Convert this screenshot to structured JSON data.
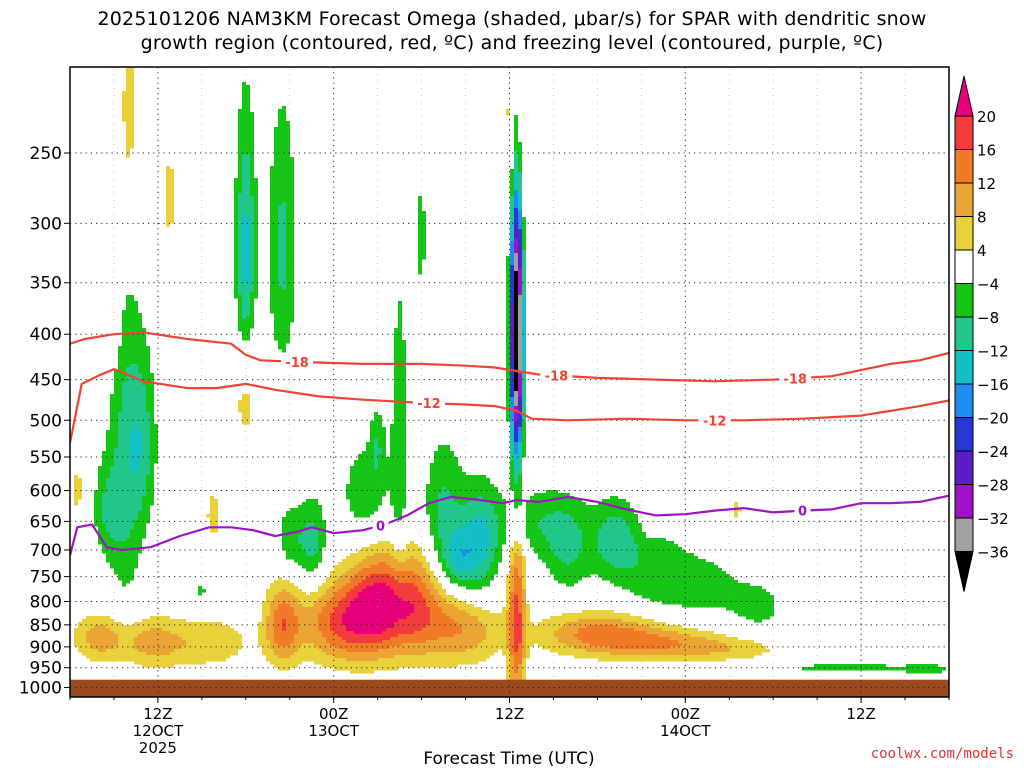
{
  "title_line1": "2025101206 NAM3KM Forecast Omega (shaded, μbar/s) for SPAR with dendritic snow",
  "title_line2": "growth region (contoured, red, ºC) and freezing level (contoured, purple, ºC)",
  "watermark": "coolwx.com/models",
  "chart_data": {
    "type": "heatmap",
    "title": "2025101206 NAM3KM Forecast Omega (shaded, μbar/s) for SPAR with dendritic snow growth region (contoured, red, ºC) and freezing level (contoured, purple, ºC)",
    "xlabel": "Forecast Time (UTC)",
    "ylabel": "",
    "x_ticks": [
      {
        "label": "12Z",
        "sub": "12OCT",
        "sub2": "2025",
        "hour": 6
      },
      {
        "label": "00Z",
        "sub": "13OCT",
        "sub2": "",
        "hour": 18
      },
      {
        "label": "12Z",
        "sub": "",
        "sub2": "",
        "hour": 30
      },
      {
        "label": "00Z",
        "sub": "14OCT",
        "sub2": "",
        "hour": 42
      },
      {
        "label": "12Z",
        "sub": "",
        "sub2": "",
        "hour": 54
      }
    ],
    "x_range_hours": [
      0,
      60
    ],
    "y_scale": "log",
    "y_ticks": [
      250,
      300,
      350,
      400,
      450,
      500,
      550,
      600,
      650,
      700,
      750,
      800,
      850,
      900,
      950,
      1000
    ],
    "y_range": [
      200,
      1025
    ],
    "grid": true,
    "colorbar": {
      "ticks": [
        20,
        16,
        12,
        8,
        4,
        -4,
        -8,
        -12,
        -16,
        -20,
        -24,
        -28,
        -32,
        -36
      ],
      "bins": [
        {
          "min": 20,
          "max": 999,
          "color": "#e8007a"
        },
        {
          "min": 16,
          "max": 20,
          "color": "#f23b3b"
        },
        {
          "min": 12,
          "max": 16,
          "color": "#f07a25"
        },
        {
          "min": 8,
          "max": 12,
          "color": "#eba535"
        },
        {
          "min": 4,
          "max": 8,
          "color": "#e8d13a"
        },
        {
          "min": -4,
          "max": 4,
          "color": "#ffffff"
        },
        {
          "min": -8,
          "max": -4,
          "color": "#16c416"
        },
        {
          "min": -12,
          "max": -8,
          "color": "#22c88a"
        },
        {
          "min": -16,
          "max": -12,
          "color": "#14bfc6"
        },
        {
          "min": -20,
          "max": -16,
          "color": "#1e8cf0"
        },
        {
          "min": -24,
          "max": -20,
          "color": "#2838d8"
        },
        {
          "min": -28,
          "max": -24,
          "color": "#5a1ec8"
        },
        {
          "min": -32,
          "max": -28,
          "color": "#a012c8"
        },
        {
          "min": -36,
          "max": -32,
          "color": "#a0a0a0"
        },
        {
          "min": -999,
          "max": -36,
          "color": "#000000"
        }
      ]
    },
    "omega_features": [
      {
        "t": 2.0,
        "p": 880,
        "w": 1.8,
        "h": 55,
        "v": 10
      },
      {
        "t": 5.5,
        "p": 890,
        "w": 2.2,
        "h": 60,
        "v": 9
      },
      {
        "t": 9.5,
        "p": 890,
        "w": 3.0,
        "h": 60,
        "v": 7
      },
      {
        "t": 14.5,
        "p": 850,
        "w": 1.2,
        "h": 90,
        "v": 14
      },
      {
        "t": 18.5,
        "p": 845,
        "w": 2.8,
        "h": 90,
        "v": 16
      },
      {
        "t": 20.8,
        "p": 800,
        "w": 2.0,
        "h": 110,
        "v": 15
      },
      {
        "t": 23.5,
        "p": 810,
        "w": 2.2,
        "h": 110,
        "v": 16
      },
      {
        "t": 27.0,
        "p": 860,
        "w": 2.5,
        "h": 80,
        "v": 11
      },
      {
        "t": 30.5,
        "p": 820,
        "w": 0.6,
        "h": 260,
        "v": 16
      },
      {
        "t": 30.5,
        "p": 240,
        "w": 0.8,
        "h": 80,
        "v": 12
      },
      {
        "t": 36.0,
        "p": 870,
        "w": 4.0,
        "h": 50,
        "v": 13
      },
      {
        "t": 40.5,
        "p": 890,
        "w": 4.0,
        "h": 40,
        "v": 9
      },
      {
        "t": 45.0,
        "p": 905,
        "w": 4.0,
        "h": 30,
        "v": 6
      },
      {
        "t": 4.0,
        "p": 230,
        "w": 0.8,
        "h": 80,
        "v": 6
      },
      {
        "t": 6.8,
        "p": 280,
        "w": 0.6,
        "h": 50,
        "v": 5
      },
      {
        "t": 12.0,
        "p": 460,
        "w": 1.0,
        "h": 80,
        "v": 7
      },
      {
        "t": 9.8,
        "p": 640,
        "w": 0.6,
        "h": 50,
        "v": 6
      },
      {
        "t": 3.0,
        "p": 370,
        "w": 0.5,
        "h": 60,
        "v": 5
      },
      {
        "t": 0.5,
        "p": 600,
        "w": 0.6,
        "h": 60,
        "v": 5
      },
      {
        "t": 39.5,
        "p": 630,
        "w": 0.4,
        "h": 40,
        "v": 5
      },
      {
        "t": 45.5,
        "p": 630,
        "w": 0.5,
        "h": 30,
        "v": 5
      },
      {
        "t": 12.0,
        "p": 330,
        "w": 0.7,
        "h": 110,
        "v": -14
      },
      {
        "t": 14.5,
        "p": 320,
        "w": 1.0,
        "h": 110,
        "v": -9
      },
      {
        "t": 3.8,
        "p": 560,
        "w": 1.2,
        "h": 230,
        "v": -9
      },
      {
        "t": 5.0,
        "p": 530,
        "w": 1.0,
        "h": 120,
        "v": -8
      },
      {
        "t": 2.5,
        "p": 630,
        "w": 1.0,
        "h": 80,
        "v": -7
      },
      {
        "t": 16.5,
        "p": 690,
        "w": 1.0,
        "h": 80,
        "v": -10
      },
      {
        "t": 15.0,
        "p": 680,
        "w": 0.8,
        "h": 60,
        "v": -7
      },
      {
        "t": 20.2,
        "p": 610,
        "w": 1.8,
        "h": 90,
        "v": -7
      },
      {
        "t": 22.5,
        "p": 530,
        "w": 0.6,
        "h": 220,
        "v": -7
      },
      {
        "t": 24.0,
        "p": 310,
        "w": 0.3,
        "h": 60,
        "v": -6
      },
      {
        "t": 25.5,
        "p": 640,
        "w": 1.4,
        "h": 120,
        "v": -9
      },
      {
        "t": 28.0,
        "p": 690,
        "w": 1.3,
        "h": 100,
        "v": -12
      },
      {
        "t": 26.5,
        "p": 720,
        "w": 1.2,
        "h": 60,
        "v": -10
      },
      {
        "t": 30.5,
        "p": 400,
        "w": 0.45,
        "h": 170,
        "v": -45
      },
      {
        "t": 31.5,
        "p": 650,
        "w": 3.0,
        "h": 60,
        "v": -7
      },
      {
        "t": 34.0,
        "p": 700,
        "w": 1.6,
        "h": 80,
        "v": -8
      },
      {
        "t": 37.2,
        "p": 680,
        "w": 1.6,
        "h": 70,
        "v": -10
      },
      {
        "t": 40.0,
        "p": 740,
        "w": 2.5,
        "h": 80,
        "v": -7
      },
      {
        "t": 43.5,
        "p": 770,
        "w": 2.5,
        "h": 60,
        "v": -6
      },
      {
        "t": 47.0,
        "p": 810,
        "w": 1.8,
        "h": 50,
        "v": -6
      },
      {
        "t": 53.0,
        "p": 950,
        "w": 5.0,
        "h": 14,
        "v": -6
      },
      {
        "t": 58.5,
        "p": 955,
        "w": 1.5,
        "h": 14,
        "v": -6
      },
      {
        "t": 9.0,
        "p": 780,
        "w": 0.4,
        "h": 30,
        "v": -5
      },
      {
        "t": 21.0,
        "p": 530,
        "w": 0.5,
        "h": 50,
        "v": -6
      }
    ],
    "contours": [
      {
        "label": "-18",
        "color": "#ee4433",
        "t": [
          0,
          1,
          3,
          5,
          8,
          11,
          12,
          13,
          16,
          20,
          24,
          27,
          29,
          30.5,
          32,
          36,
          40,
          44,
          48,
          52,
          56,
          58,
          60
        ],
        "p": [
          410,
          405,
          400,
          398,
          405,
          410,
          422,
          428,
          430,
          432,
          432,
          434,
          436,
          440,
          444,
          448,
          450,
          452,
          450,
          446,
          432,
          428,
          420
        ],
        "labels": [
          {
            "t": 15.5
          },
          {
            "t": 33.2
          },
          {
            "t": 49.5
          }
        ]
      },
      {
        "label": "-12",
        "color": "#ee4433",
        "t": [
          0,
          0.8,
          2,
          3,
          5,
          8,
          10,
          12,
          14,
          17,
          20,
          24,
          27,
          29,
          30.5,
          31.5,
          34,
          38,
          42,
          46,
          50,
          54,
          58,
          60
        ],
        "p": [
          530,
          455,
          445,
          438,
          452,
          460,
          460,
          455,
          462,
          470,
          474,
          478,
          480,
          482,
          488,
          498,
          500,
          498,
          500,
          500,
          498,
          494,
          482,
          475
        ],
        "labels": [
          {
            "t": 24.5
          },
          {
            "t": 44.0
          }
        ]
      },
      {
        "label": "0",
        "color": "#a012c8",
        "t": [
          0,
          0.5,
          1.5,
          2.5,
          3.5,
          5.5,
          7.5,
          9.5,
          11,
          12.5,
          14,
          15.5,
          16.5,
          18,
          20,
          21.5,
          23,
          24.5,
          26,
          28,
          29.5,
          30.5,
          32,
          34,
          36,
          38,
          40,
          42,
          44,
          46,
          48,
          50,
          52,
          54,
          56,
          58,
          60
        ],
        "p": [
          710,
          660,
          655,
          695,
          700,
          695,
          675,
          660,
          660,
          665,
          675,
          668,
          660,
          670,
          665,
          655,
          640,
          620,
          610,
          615,
          620,
          615,
          618,
          610,
          618,
          630,
          640,
          638,
          632,
          628,
          635,
          632,
          630,
          620,
          620,
          618,
          608
        ],
        "labels": [
          {
            "t": 21.2
          },
          {
            "t": 50.0
          }
        ]
      }
    ],
    "ground_level_hpa": 980
  }
}
